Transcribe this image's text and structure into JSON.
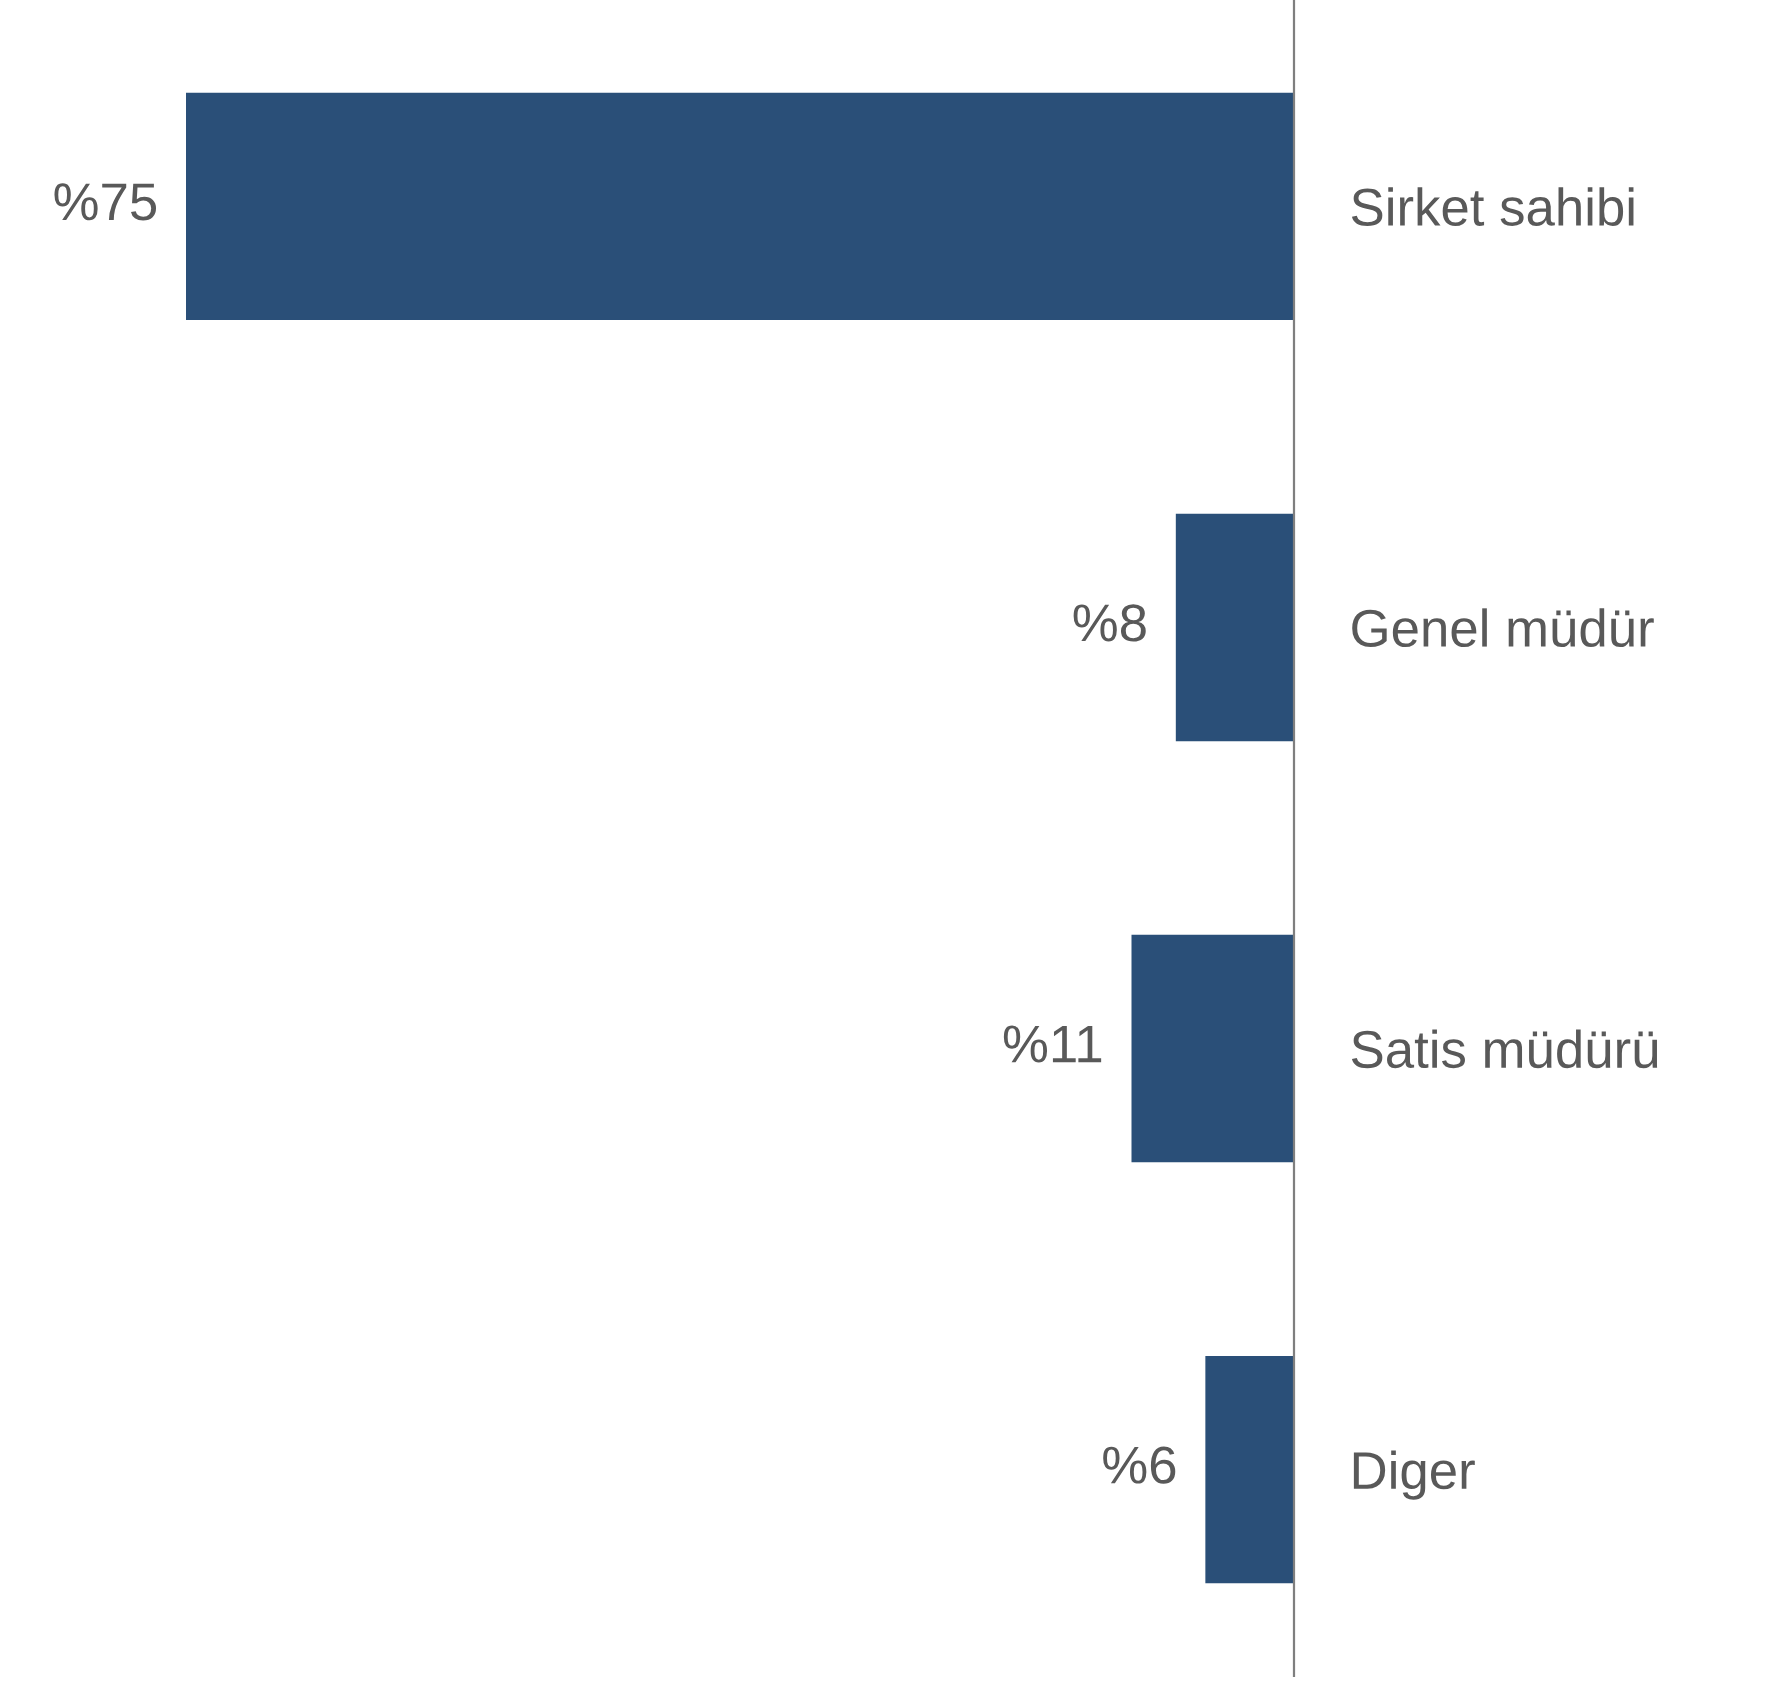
{
  "chart_data": {
    "type": "bar",
    "orientation": "horizontal",
    "categories": [
      "Sirket sahibi",
      "Genel müdür",
      "Satis müdürü",
      "Diger"
    ],
    "values": [
      75,
      8,
      11,
      6
    ],
    "color": "#2a4f78",
    "value_labels": [
      "%75",
      "%8",
      "%11",
      "%6"
    ],
    "tick_labels": "y",
    "grid": false,
    "legend": false
  }
}
